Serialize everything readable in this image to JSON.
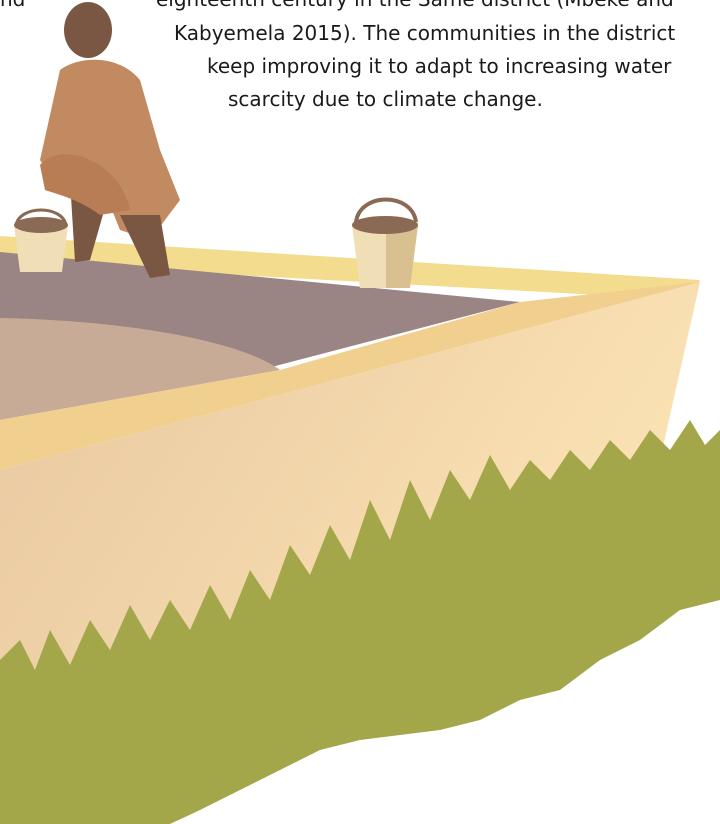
{
  "fragment": "nd",
  "text": {
    "lines": [
      "eighteenth century in the Same district (Mbeke and",
      "Kabyemela 2015). The communities in the district",
      "keep improving it to adapt to increasing water",
      "scarcity due to climate change."
    ]
  }
}
